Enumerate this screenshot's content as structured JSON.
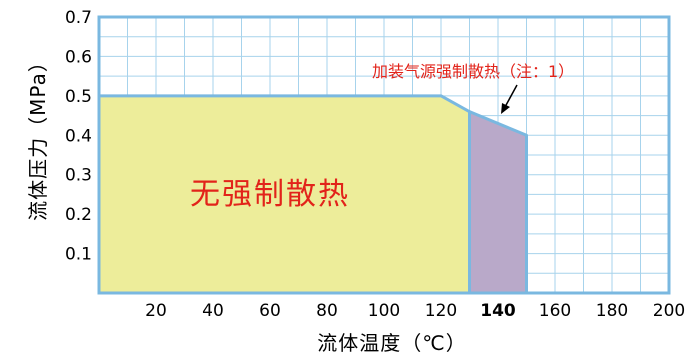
{
  "chart_data": {
    "type": "area",
    "xlabel": "流体温度（℃）",
    "ylabel": "流体压力（MPa）",
    "xlim": [
      0,
      200
    ],
    "ylim": [
      0,
      0.7
    ],
    "x_ticks": [
      "20",
      "40",
      "60",
      "80",
      "100",
      "120",
      "140",
      "160",
      "180",
      "200"
    ],
    "y_ticks": [
      "0.1",
      "0.2",
      "0.3",
      "0.4",
      "0.5",
      "0.6",
      "0.7"
    ],
    "grid": true,
    "regions": [
      {
        "name": "无强制散热",
        "color": "#eded9a",
        "points": [
          [
            0,
            0
          ],
          [
            0,
            0.5
          ],
          [
            120,
            0.5
          ],
          [
            130,
            0.46
          ],
          [
            130,
            0
          ]
        ]
      },
      {
        "name": "加装气源强制散热（注：1）",
        "color": "#b9a9c9",
        "points": [
          [
            130,
            0
          ],
          [
            130,
            0.46
          ],
          [
            150,
            0.4
          ],
          [
            150,
            0
          ]
        ]
      }
    ],
    "annotations": {
      "region_label": "无强制散热",
      "callout": "加装气源强制散热（注：1）"
    },
    "colors": {
      "grid": "#a7d3ec",
      "boundary": "#7ab8e0",
      "text_red": "#e2231a"
    }
  }
}
